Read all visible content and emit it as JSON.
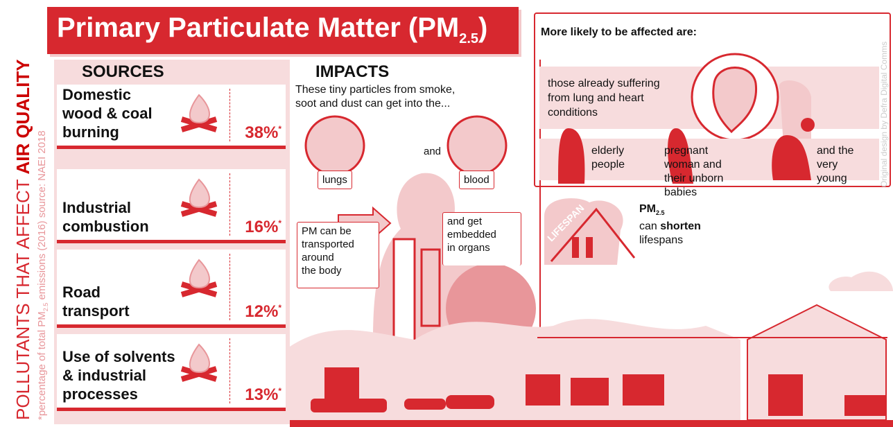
{
  "side": {
    "title_light": "POLLUTANTS THAT AFFECT",
    "title_bold": "AIR QUALITY",
    "note_start": "*percentage of total PM",
    "note_sub": "2.5",
    "note_end": " emissions (2016) source: NAEI 2018"
  },
  "header": {
    "title": "Primary Particulate Matter (PM",
    "sub": "2.5",
    "close": ")"
  },
  "sources": {
    "heading": "SOURCES",
    "items": [
      {
        "lines": [
          "Domestic",
          "wood & coal",
          "burning"
        ],
        "percent": "38%",
        "mark": "*"
      },
      {
        "lines": [
          "Industrial",
          "combustion"
        ],
        "percent": "16%",
        "mark": "*"
      },
      {
        "lines": [
          "Road",
          "transport"
        ],
        "percent": "12%",
        "mark": "*"
      },
      {
        "lines": [
          "Use of solvents",
          "& industrial",
          "processes"
        ],
        "percent": "13%",
        "mark": "*"
      }
    ]
  },
  "impacts": {
    "heading": "IMPACTS",
    "intro": [
      "These tiny particles from smoke,",
      "soot and dust can get into the..."
    ],
    "lungs": "lungs",
    "and": "and",
    "blood": "blood",
    "transport": [
      "PM can be",
      "transported",
      "around",
      "the body"
    ],
    "organs": [
      "and get",
      "embedded",
      "in organs"
    ]
  },
  "affected": {
    "heading": "More likely to be affected are:",
    "conditions": [
      "those already suffering",
      "from lung and heart",
      "conditions"
    ],
    "groups": [
      [
        "elderly",
        "people"
      ],
      [
        "pregnant",
        "woman and",
        "their unborn",
        "babies"
      ],
      [
        "and the",
        "very",
        "young"
      ]
    ]
  },
  "lifespan": {
    "badge": "LIFESPAN",
    "pm": "PM",
    "sub": "2.5",
    "before": "can ",
    "bold": "shorten",
    "after": "lifespans"
  },
  "credit": "Original design by Defra Digital Comms"
}
